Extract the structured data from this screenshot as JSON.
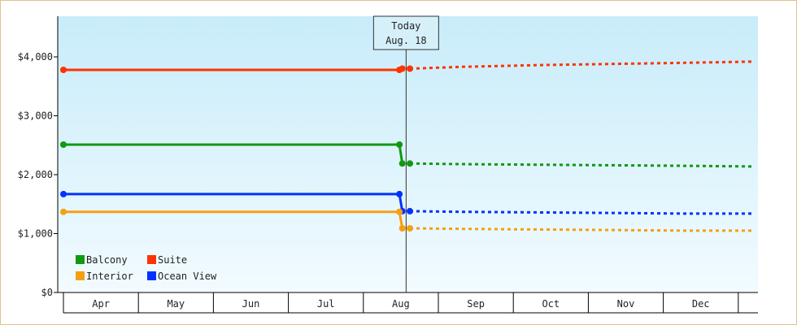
{
  "chart_data": {
    "type": "line",
    "title": "",
    "xlabel": "",
    "ylabel": "",
    "ylim": [
      0,
      4000
    ],
    "y_ticks": [
      {
        "value": 0,
        "label": "$0"
      },
      {
        "value": 1000,
        "label": "$1,000"
      },
      {
        "value": 2000,
        "label": "$2,000"
      },
      {
        "value": 3000,
        "label": "$3,000"
      },
      {
        "value": 4000,
        "label": "$4,000"
      }
    ],
    "months": [
      "Apr",
      "May",
      "Jun",
      "Jul",
      "Aug",
      "Sep",
      "Oct",
      "Nov",
      "Dec"
    ],
    "today": {
      "line1": "Today",
      "line2": "Aug. 18",
      "month_index": 4.57
    },
    "legend_position": "bottom-left",
    "series": [
      {
        "name": "Suite",
        "color": "#ff3300",
        "history": [
          [
            0,
            3780
          ],
          [
            4.48,
            3780
          ],
          [
            4.52,
            3800
          ]
        ],
        "forecast": [
          [
            4.62,
            3800
          ],
          [
            5.3,
            3830
          ],
          [
            6.3,
            3860
          ],
          [
            7.3,
            3880
          ],
          [
            8.3,
            3900
          ],
          [
            9.2,
            3920
          ]
        ]
      },
      {
        "name": "Balcony",
        "color": "#119911",
        "history": [
          [
            0,
            2510
          ],
          [
            4.48,
            2510
          ],
          [
            4.52,
            2190
          ]
        ],
        "forecast": [
          [
            4.62,
            2190
          ],
          [
            5.3,
            2180
          ],
          [
            6.3,
            2170
          ],
          [
            7.3,
            2160
          ],
          [
            8.3,
            2150
          ],
          [
            9.2,
            2140
          ]
        ]
      },
      {
        "name": "Ocean View",
        "color": "#0033ff",
        "history": [
          [
            0,
            1670
          ],
          [
            4.48,
            1670
          ],
          [
            4.52,
            1380
          ]
        ],
        "forecast": [
          [
            4.62,
            1380
          ],
          [
            5.3,
            1370
          ],
          [
            6.3,
            1360
          ],
          [
            7.3,
            1350
          ],
          [
            8.3,
            1340
          ],
          [
            9.2,
            1340
          ]
        ]
      },
      {
        "name": "Interior",
        "color": "#f5a010",
        "history": [
          [
            0,
            1370
          ],
          [
            4.48,
            1370
          ],
          [
            4.52,
            1090
          ]
        ],
        "forecast": [
          [
            4.62,
            1090
          ],
          [
            5.3,
            1080
          ],
          [
            6.3,
            1070
          ],
          [
            7.3,
            1060
          ],
          [
            8.3,
            1050
          ],
          [
            9.2,
            1050
          ]
        ]
      }
    ],
    "legend": [
      {
        "name": "Balcony",
        "color": "#119911"
      },
      {
        "name": "Suite",
        "color": "#ff3300"
      },
      {
        "name": "Interior",
        "color": "#f5a010"
      },
      {
        "name": "Ocean View",
        "color": "#0033ff"
      }
    ]
  }
}
